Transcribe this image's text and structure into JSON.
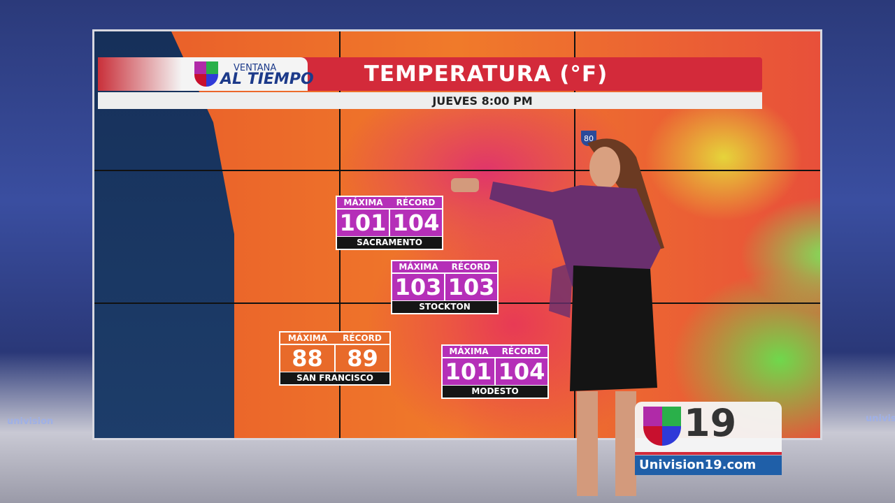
{
  "studio": {
    "brand": "univision"
  },
  "graphic": {
    "logo": {
      "line1": "VENTANA",
      "line2": "AL TIEMPO"
    },
    "title": "TEMPERATURA (°F)",
    "subtitle": "JUEVES 8:00 PM",
    "highway_marker": "80"
  },
  "cards": [
    {
      "city": "SACRAMENTO",
      "max_label": "MÁXIMA",
      "record_label": "RÉCORD",
      "max": "101",
      "record": "104",
      "color": "#b52fb8"
    },
    {
      "city": "STOCKTON",
      "max_label": "MÁXIMA",
      "record_label": "RÉCORD",
      "max": "103",
      "record": "103",
      "color": "#b52fb8"
    },
    {
      "city": "SAN FRANCISCO",
      "max_label": "MÁXIMA",
      "record_label": "RÉCORD",
      "max": "88",
      "record": "89",
      "color": "#e86a2a"
    },
    {
      "city": "MODESTO",
      "max_label": "MÁXIMA",
      "record_label": "RÉCORD",
      "max": "101",
      "record": "104",
      "color": "#b52fb8"
    }
  ],
  "channel": {
    "number": "19",
    "website": "Univision19.com"
  }
}
